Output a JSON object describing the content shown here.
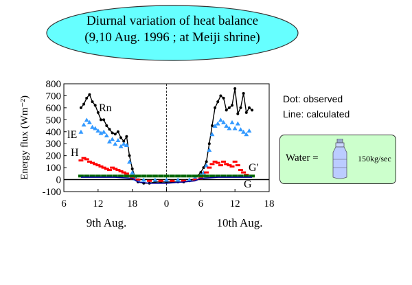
{
  "title": {
    "line1": "Diurnal variation of heat balance",
    "line2": "(9,10 Aug. 1996 ; at Meiji shrine)"
  },
  "colors": {
    "ellipse_fill": "#66ffff",
    "rn": "#000000",
    "le": "#3399ff",
    "h": "#ff0000",
    "g_prime": "#006600",
    "g": "#000099",
    "water_box": "#ccffcc"
  },
  "legend": {
    "dot": "Dot:  observed",
    "line": "Line: calculated"
  },
  "water": {
    "label": "Water =",
    "rate": "150kg/sec",
    "icon": "water-bottle-icon"
  },
  "chart_data": {
    "type": "line",
    "ylabel": "Energy flux (Wm⁻²)",
    "ylim": [
      -100,
      800
    ],
    "yticks": [
      800,
      700,
      600,
      500,
      400,
      300,
      200,
      100,
      0,
      -100
    ],
    "xticks": [
      "6",
      "12",
      "18",
      "0",
      "6",
      "12",
      "18"
    ],
    "xtick_hours": [
      6,
      12,
      18,
      24,
      30,
      36,
      42
    ],
    "xlim_hours": [
      6,
      42
    ],
    "day_labels": [
      "9th Aug.",
      "10th Aug."
    ],
    "midnight_line_hour": 24,
    "series_labels": [
      "Rn",
      "lE",
      "H",
      "G'",
      "G"
    ],
    "series": [
      {
        "name": "Rn",
        "marker": "dot-black",
        "x": [
          9.0,
          9.5,
          10.0,
          10.5,
          11.0,
          11.5,
          12.0,
          12.5,
          13.0,
          13.5,
          14.0,
          14.5,
          15.0,
          15.5,
          16.0,
          16.5,
          17.0,
          17.5,
          18.0,
          18.5,
          19.0,
          20,
          21,
          22,
          23,
          24,
          25,
          26,
          27,
          28,
          29,
          30.0,
          30.5,
          31.0,
          31.5,
          32.0,
          32.5,
          33.0,
          33.5,
          34.0,
          34.5,
          35.0,
          35.5,
          36.0,
          36.5,
          37.0,
          37.5,
          38.0,
          38.5,
          39.0
        ],
        "y": [
          600,
          630,
          680,
          710,
          650,
          620,
          560,
          500,
          500,
          450,
          420,
          390,
          380,
          400,
          350,
          320,
          360,
          200,
          90,
          20,
          -20,
          -30,
          -30,
          -20,
          -20,
          -20,
          -20,
          -20,
          -20,
          -10,
          10,
          60,
          100,
          150,
          300,
          450,
          600,
          650,
          700,
          680,
          580,
          600,
          620,
          760,
          550,
          600,
          720,
          560,
          600,
          580
        ]
      },
      {
        "name": "lE",
        "marker": "triangle-blue",
        "x": [
          9.0,
          9.5,
          10.0,
          10.5,
          11.0,
          11.5,
          12.0,
          12.5,
          13.0,
          13.5,
          14.0,
          14.5,
          15.0,
          15.5,
          16.0,
          16.5,
          17.0,
          17.5,
          18.0,
          18.5,
          19.0,
          20,
          22,
          24,
          26,
          28,
          29,
          30.0,
          30.5,
          31.0,
          31.5,
          32.0,
          32.5,
          33.0,
          33.5,
          34.0,
          34.5,
          35.0,
          35.5,
          36.0,
          36.5,
          37.0,
          37.5,
          38.0,
          38.5
        ],
        "y": [
          400,
          460,
          500,
          480,
          440,
          430,
          410,
          390,
          400,
          370,
          320,
          340,
          300,
          330,
          280,
          300,
          290,
          150,
          60,
          10,
          0,
          0,
          0,
          0,
          0,
          0,
          20,
          40,
          60,
          120,
          250,
          380,
          450,
          470,
          500,
          480,
          450,
          430,
          480,
          430,
          470,
          420,
          400,
          380,
          410
        ]
      },
      {
        "name": "H",
        "marker": "dash-red",
        "x": [
          9.0,
          9.5,
          10.0,
          10.5,
          11.0,
          11.5,
          12.0,
          12.5,
          13.0,
          13.5,
          14.0,
          14.5,
          15.0,
          15.5,
          16.0,
          16.5,
          17.0,
          17.5,
          18.0,
          19,
          21,
          23,
          25,
          27,
          29,
          30.0,
          30.5,
          31.0,
          31.5,
          32.0,
          32.5,
          33.0,
          33.5,
          34.0,
          34.5,
          35.0,
          35.5,
          36.0,
          36.5,
          37.0,
          37.5,
          38.0
        ],
        "y": [
          160,
          180,
          170,
          150,
          140,
          130,
          120,
          110,
          100,
          90,
          80,
          100,
          90,
          80,
          70,
          60,
          50,
          30,
          10,
          0,
          -10,
          -10,
          -10,
          -10,
          0,
          10,
          30,
          60,
          100,
          130,
          150,
          140,
          120,
          150,
          130,
          120,
          110,
          150,
          120,
          80,
          60,
          40
        ]
      },
      {
        "name": "G'",
        "marker": "dash-green",
        "x": [
          9,
          10,
          11,
          12,
          13,
          14,
          15,
          16,
          17,
          18,
          19,
          20,
          21,
          22,
          23,
          24,
          25,
          26,
          27,
          28,
          29,
          30,
          31,
          32,
          33,
          34,
          35,
          36,
          37,
          38,
          39
        ],
        "y": [
          30,
          30,
          30,
          30,
          30,
          30,
          30,
          30,
          30,
          30,
          30,
          30,
          30,
          30,
          30,
          30,
          30,
          30,
          30,
          30,
          30,
          30,
          30,
          30,
          30,
          30,
          30,
          30,
          30,
          30,
          30
        ]
      },
      {
        "name": "G",
        "marker": "line-blue",
        "x": [
          9,
          12,
          15,
          18,
          19,
          21,
          24,
          27,
          29,
          30,
          33,
          36,
          39
        ],
        "y": [
          20,
          20,
          20,
          10,
          -20,
          -30,
          -30,
          -20,
          -10,
          10,
          20,
          20,
          20
        ]
      }
    ]
  }
}
